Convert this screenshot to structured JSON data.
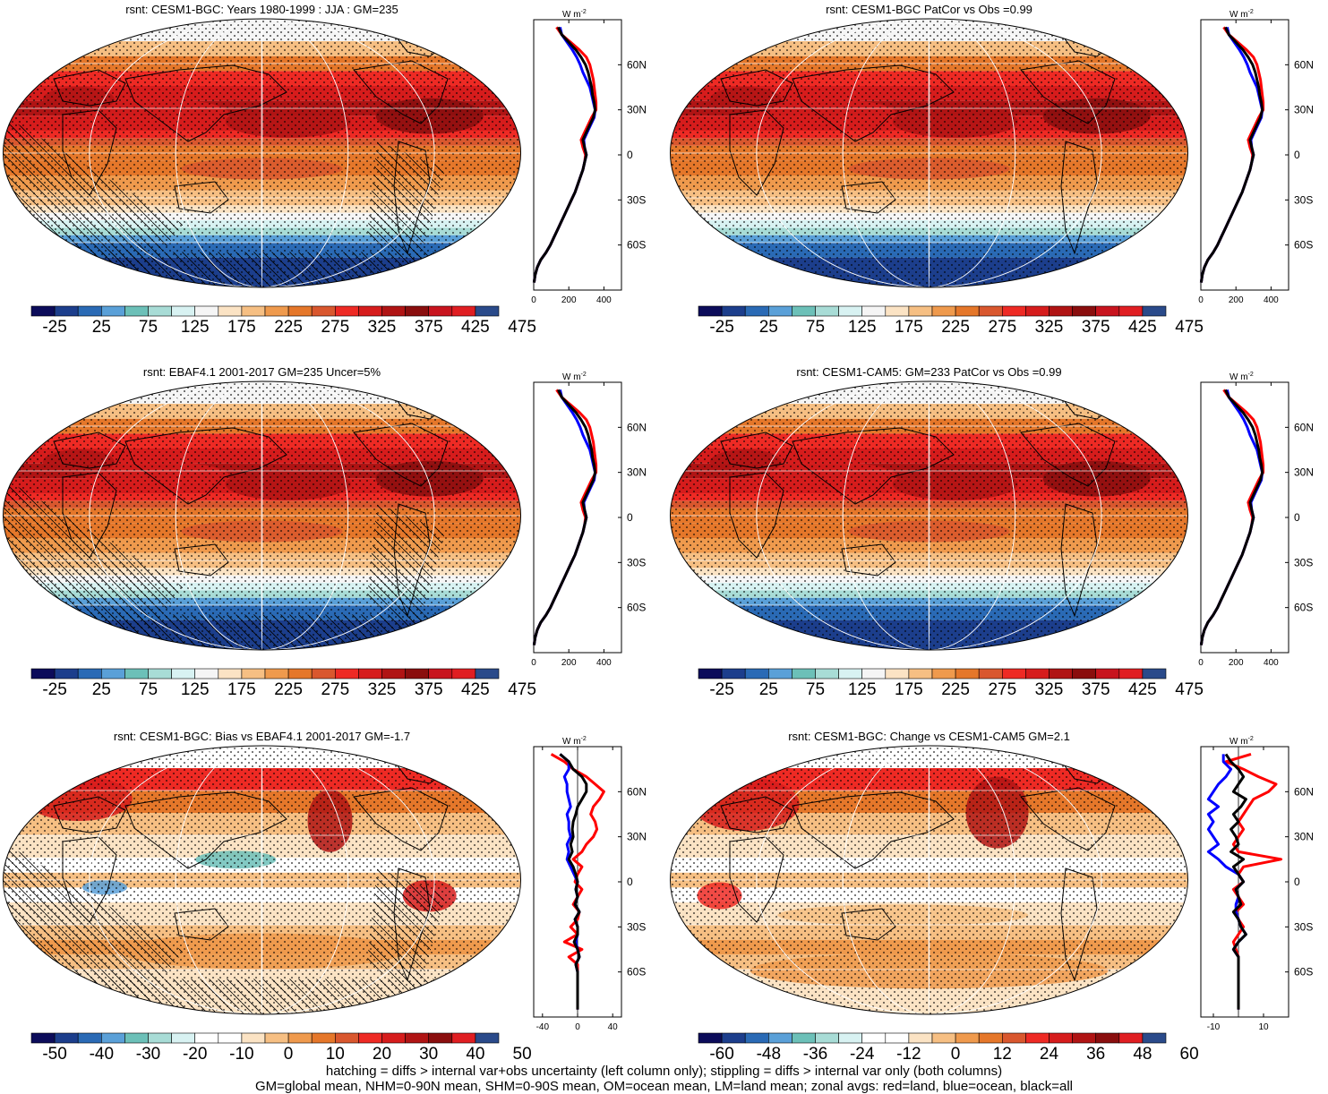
{
  "colors": {
    "land_curve": "#ff0000",
    "ocean_curve": "#0000ff",
    "all_curve": "#000000",
    "grid": "#ffffff",
    "coast": "#000000"
  },
  "scale_abs": [
    "#0c0c5a",
    "#1c3e8c",
    "#2a6ab5",
    "#5aa0d8",
    "#6cc0b8",
    "#a8dcd6",
    "#d8f2f2",
    "#f5f5f5",
    "#fbe3c4",
    "#f6bf83",
    "#ef9a4d",
    "#e5772a",
    "#d9572e",
    "#ee2a24",
    "#d61c1c",
    "#b01414",
    "#8a0e0e",
    "#c8141e",
    "#e01e22",
    "#2a4a8a"
  ],
  "scale_diff": [
    "#0c0c5a",
    "#1c3e8c",
    "#2a6ab5",
    "#5aa0d8",
    "#6cc0b8",
    "#a8dcd6",
    "#d8f2f2",
    "#ffffff",
    "#ffffff",
    "#fbe3c4",
    "#f6bf83",
    "#ef9a4d",
    "#e5772a",
    "#d9572e",
    "#ee2a24",
    "#d61c1c",
    "#b01414",
    "#8a0e0e",
    "#e01e22",
    "#2a4a8a"
  ],
  "panels": [
    {
      "id": "p1",
      "title": "rsnt: CESM1-BGC: Years 1980-1999 : JJA : GM=235",
      "kind": "abs",
      "hatching": true,
      "cbar_labels": [
        "-25",
        "25",
        "75",
        "125",
        "175",
        "225",
        "275",
        "325",
        "375",
        "425",
        "475"
      ],
      "zonal_unit": "W m",
      "zonal_unit_sup": "-2",
      "zonal_xticks": [
        "0",
        "200",
        "400"
      ],
      "zonal_lat_labels": [
        "60N",
        "30N",
        "0",
        "30S",
        "60S"
      ]
    },
    {
      "id": "p2",
      "title": "rsnt: CESM1-BGC PatCor vs Obs =0.99",
      "kind": "abs",
      "hatching": false,
      "cbar_labels": [
        "-25",
        "25",
        "75",
        "125",
        "175",
        "225",
        "275",
        "325",
        "375",
        "425",
        "475"
      ],
      "zonal_unit": "W m",
      "zonal_unit_sup": "-2",
      "zonal_xticks": [
        "0",
        "200",
        "400"
      ],
      "zonal_lat_labels": [
        "60N",
        "30N",
        "0",
        "30S",
        "60S"
      ]
    },
    {
      "id": "p3",
      "title": "rsnt: EBAF4.1 2001-2017 GM=235 Uncer=5%",
      "kind": "abs",
      "hatching": true,
      "cbar_labels": [
        "-25",
        "25",
        "75",
        "125",
        "175",
        "225",
        "275",
        "325",
        "375",
        "425",
        "475"
      ],
      "zonal_unit": "W m",
      "zonal_unit_sup": "-2",
      "zonal_xticks": [
        "0",
        "200",
        "400"
      ],
      "zonal_lat_labels": [
        "60N",
        "30N",
        "0",
        "30S",
        "60S"
      ]
    },
    {
      "id": "p4",
      "title": "rsnt: CESM1-CAM5: GM=233 PatCor vs Obs =0.99",
      "kind": "abs",
      "hatching": false,
      "cbar_labels": [
        "-25",
        "25",
        "75",
        "125",
        "175",
        "225",
        "275",
        "325",
        "375",
        "425",
        "475"
      ],
      "zonal_unit": "W m",
      "zonal_unit_sup": "-2",
      "zonal_xticks": [
        "0",
        "200",
        "400"
      ],
      "zonal_lat_labels": [
        "60N",
        "30N",
        "0",
        "30S",
        "60S"
      ]
    },
    {
      "id": "p5",
      "title": "rsnt: CESM1-BGC: Bias vs EBAF4.1 2001-2017 GM=-1.7",
      "kind": "diff",
      "hatching": true,
      "cbar_labels": [
        "-50",
        "-40",
        "-30",
        "-20",
        "-10",
        "0",
        "10",
        "20",
        "30",
        "40",
        "50"
      ],
      "zonal_unit": "W m",
      "zonal_unit_sup": "-2",
      "zonal_xticks": [
        "-40",
        "0",
        "40"
      ],
      "zonal_lat_labels": [
        "60N",
        "30N",
        "0",
        "30S",
        "60S"
      ]
    },
    {
      "id": "p6",
      "title": "rsnt: CESM1-BGC: Change vs CESM1-CAM5 GM=2.1",
      "kind": "diff",
      "hatching": false,
      "cbar_labels": [
        "-60",
        "-48",
        "-36",
        "-24",
        "-12",
        "0",
        "12",
        "24",
        "36",
        "48",
        "60"
      ],
      "zonal_unit": "W m",
      "zonal_unit_sup": "-2",
      "zonal_xticks": [
        "-10",
        "10"
      ],
      "zonal_lat_labels": [
        "60N",
        "30N",
        "0",
        "30S",
        "60S"
      ]
    }
  ],
  "zonal": {
    "abs_xlim": [
      0,
      500
    ],
    "lats": [
      85,
      80,
      75,
      70,
      65,
      60,
      55,
      50,
      45,
      40,
      35,
      30,
      25,
      20,
      15,
      10,
      5,
      0,
      -5,
      -10,
      -15,
      -20,
      -25,
      -30,
      -35,
      -40,
      -45,
      -50,
      -55,
      -60,
      -65,
      -70,
      -75,
      -80,
      -85
    ],
    "abs_all": [
      140,
      160,
      200,
      240,
      270,
      295,
      310,
      320,
      330,
      335,
      345,
      350,
      340,
      320,
      300,
      280,
      290,
      300,
      290,
      280,
      265,
      250,
      235,
      215,
      195,
      175,
      155,
      135,
      115,
      95,
      70,
      40,
      20,
      8,
      2
    ],
    "abs_land": [
      130,
      160,
      210,
      260,
      300,
      320,
      330,
      340,
      345,
      350,
      355,
      355,
      330,
      310,
      290,
      270,
      280,
      295,
      290,
      280,
      265,
      250,
      235,
      215,
      195,
      175,
      155,
      135,
      115,
      95,
      70,
      40,
      20,
      8,
      2
    ],
    "abs_ocean": [
      150,
      160,
      190,
      220,
      245,
      265,
      280,
      300,
      320,
      330,
      340,
      350,
      345,
      325,
      305,
      285,
      290,
      300,
      290,
      280,
      265,
      250,
      235,
      215,
      195,
      175,
      155,
      135,
      115,
      95,
      70,
      40,
      20,
      8,
      2
    ],
    "bias_xlim": [
      -50,
      50
    ],
    "bias_all": [
      -20,
      -10,
      -5,
      5,
      10,
      10,
      5,
      0,
      -2,
      -5,
      -6,
      -5,
      -8,
      -6,
      -10,
      -5,
      -2,
      0,
      -2,
      0,
      -3,
      2,
      -3,
      0,
      0,
      -4,
      0,
      2,
      -2,
      0,
      0,
      0,
      0,
      0,
      0
    ],
    "bias_land": [
      -30,
      -15,
      -5,
      10,
      20,
      30,
      25,
      18,
      15,
      20,
      22,
      18,
      10,
      5,
      -5,
      5,
      0,
      -3,
      5,
      0,
      -5,
      2,
      0,
      -8,
      0,
      -15,
      5,
      -10,
      0,
      0,
      0,
      0,
      0,
      0,
      0
    ],
    "bias_ocean": [
      -20,
      -10,
      -10,
      -15,
      -12,
      -12,
      -10,
      -8,
      -12,
      -10,
      -10,
      -8,
      -12,
      -10,
      -12,
      -8,
      -4,
      0,
      -2,
      0,
      -3,
      2,
      -3,
      0,
      0,
      -2,
      0,
      2,
      -2,
      0,
      0,
      0,
      0,
      0,
      0
    ],
    "chg_xlim": [
      -15,
      20
    ],
    "chg_all": [
      -5,
      -3,
      0,
      2,
      0,
      -2,
      3,
      1,
      -2,
      0,
      -3,
      -1,
      0,
      -3,
      2,
      -2,
      0,
      2,
      -1,
      0,
      1,
      -2,
      0,
      1,
      3,
      0,
      -2,
      0,
      0,
      0,
      0,
      0,
      0,
      0,
      0
    ],
    "chg_land": [
      5,
      -5,
      2,
      8,
      15,
      12,
      6,
      4,
      2,
      0,
      2,
      0,
      -2,
      0,
      17,
      2,
      0,
      2,
      -2,
      0,
      2,
      -1,
      0,
      2,
      0,
      -2,
      -1,
      0,
      0,
      0,
      0,
      0,
      0,
      0,
      0
    ],
    "chg_ocean": [
      -6,
      -6,
      -3,
      -5,
      -8,
      -10,
      -12,
      -8,
      -12,
      -10,
      -12,
      -10,
      -8,
      -12,
      -8,
      -5,
      0,
      2,
      -1,
      0,
      -1,
      -1,
      0,
      1,
      3,
      0,
      -2,
      0,
      0,
      0,
      0,
      0,
      0,
      0,
      0
    ]
  },
  "footer": {
    "line1": "hatching = diffs > internal var+obs uncertainty (left column only); stippling = diffs > internal var only (both columns)",
    "line2": "GM=global mean, NHM=0-90N mean, SHM=0-90S mean, OM=ocean mean, LM=land mean; zonal avgs: red=land, blue=ocean, black=all"
  }
}
